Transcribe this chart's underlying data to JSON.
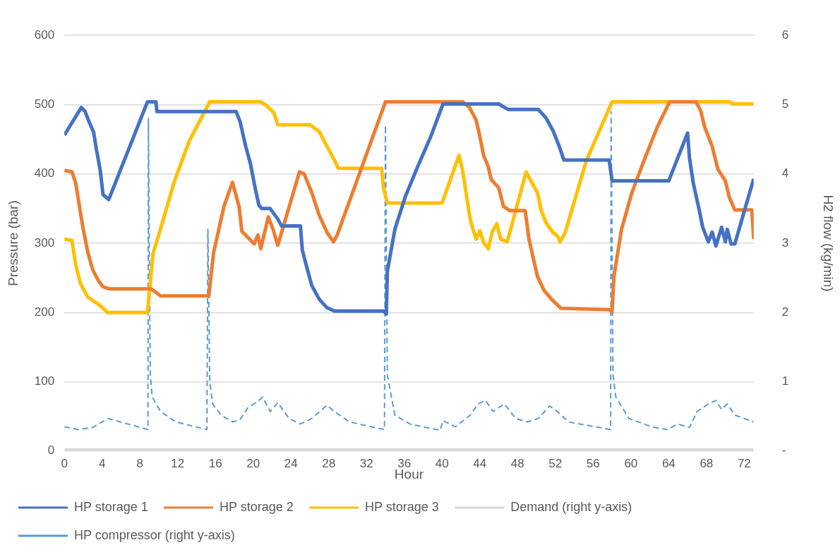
{
  "chart_data": {
    "type": "line",
    "xlabel": "Hour",
    "ylabel": "Pressure (bar)",
    "y2label": "H2 flow (kg/min)",
    "xlim": [
      0,
      73
    ],
    "xticks": [
      0,
      4,
      8,
      12,
      16,
      20,
      24,
      28,
      32,
      36,
      40,
      44,
      48,
      52,
      56,
      60,
      64,
      68,
      72
    ],
    "ylim": [
      0,
      600
    ],
    "yticks": [
      0,
      100,
      200,
      300,
      400,
      500,
      600
    ],
    "y2lim": [
      0,
      6
    ],
    "y2ticks": [
      {
        "value": 0,
        "label": "-"
      },
      1,
      2,
      3,
      4,
      5,
      6
    ],
    "grid": "y",
    "legend": "bottom",
    "marker": "none",
    "series": [
      {
        "name": "HP storage 1",
        "color": "#4472c4",
        "x": [
          0,
          1.8,
          2.2,
          2.6,
          3.1,
          3.4,
          3.8,
          4.1,
          4.7,
          8.8,
          9.7,
          9.8,
          18.2,
          18.6,
          19.2,
          19.7,
          20.2,
          20.6,
          20.9,
          21.8,
          22.6,
          23,
          25,
          25.2,
          25.7,
          26.2,
          27,
          27.8,
          28.6,
          33.8,
          34.1,
          34.2,
          35,
          36.1,
          37.4,
          38.8,
          40.1,
          46,
          47,
          50.2,
          51,
          51.8,
          52.4,
          52.9,
          57.7,
          58,
          64,
          66,
          66.2,
          66.6,
          67.2,
          67.6,
          68.2,
          68.6,
          69,
          69.6,
          70,
          70.2,
          70.6,
          71,
          73
        ],
        "values": [
          456,
          496,
          490,
          476,
          460,
          435,
          405,
          370,
          363,
          504,
          504,
          490,
          490,
          476,
          440,
          415,
          380,
          355,
          350,
          350,
          335,
          325,
          325,
          290,
          264,
          239,
          219,
          207,
          202,
          202,
          198,
          259,
          320,
          367,
          410,
          454,
          501,
          501,
          493,
          493,
          481,
          461,
          440,
          420,
          420,
          390,
          390,
          459,
          423,
          387,
          350,
          323,
          302,
          316,
          296,
          323,
          302,
          320,
          299,
          299,
          393
        ]
      },
      {
        "name": "HP storage 2",
        "color": "#ed7d31",
        "x": [
          0,
          0.8,
          1.2,
          1.6,
          2,
          2.5,
          3,
          3.6,
          4.1,
          4.8,
          9.2,
          10.2,
          15.3,
          15.8,
          16.9,
          17.8,
          18.5,
          18.8,
          19.6,
          20.1,
          20.5,
          20.8,
          21.6,
          22.1,
          22.6,
          24.9,
          25.4,
          26.2,
          27,
          27.8,
          28.5,
          28.9,
          34,
          42.2,
          42.9,
          43.6,
          44,
          44.4,
          44.9,
          45.2,
          46,
          46.5,
          47.2,
          48.8,
          49.2,
          49.7,
          50.1,
          50.8,
          51.6,
          52.6,
          57.7,
          58,
          58.2,
          59,
          60.1,
          61.4,
          62.8,
          64.1,
          66.9,
          67.4,
          67.8,
          68.6,
          69.2,
          70,
          70.4,
          71,
          72.8,
          73
        ],
        "values": [
          405,
          403,
          387,
          353,
          320,
          286,
          262,
          246,
          237,
          234,
          234,
          224,
          224,
          286,
          353,
          388,
          353,
          317,
          306,
          299,
          312,
          292,
          338,
          320,
          297,
          403,
          400,
          373,
          340,
          316,
          302,
          312,
          504,
          504,
          496,
          478,
          454,
          427,
          410,
          392,
          380,
          353,
          347,
          347,
          306,
          276,
          252,
          232,
          219,
          206,
          204,
          201,
          252,
          320,
          373,
          420,
          468,
          504,
          504,
          491,
          468,
          440,
          407,
          390,
          367,
          348,
          348,
          306
        ]
      },
      {
        "name": "HP storage 3",
        "color": "#ffc000",
        "x": [
          0,
          0.8,
          1.2,
          1.7,
          2.5,
          3.6,
          4.6,
          8.8,
          9.4,
          10,
          11.6,
          13.2,
          15.4,
          20.8,
          21.4,
          22.2,
          22.6,
          26,
          27,
          27.8,
          28.6,
          29,
          33.6,
          33.8,
          34.2,
          40,
          41.8,
          42.2,
          42.6,
          43,
          43.6,
          44,
          44.4,
          44.9,
          45.3,
          45.8,
          46.2,
          46.9,
          48.9,
          49.4,
          50.1,
          50.5,
          51,
          51.7,
          52.2,
          52.5,
          53,
          55.3,
          58,
          70.5,
          70.8,
          73
        ],
        "values": [
          306,
          304,
          269,
          242,
          222,
          212,
          200,
          200,
          286,
          312,
          387,
          447,
          504,
          504,
          499,
          488,
          471,
          471,
          461,
          440,
          420,
          408,
          408,
          380,
          358,
          358,
          427,
          403,
          367,
          333,
          306,
          318,
          301,
          292,
          316,
          328,
          306,
          302,
          403,
          390,
          373,
          347,
          330,
          316,
          311,
          302,
          314,
          420,
          504,
          504,
          501,
          501
        ]
      },
      {
        "name": "Demand (right y-axis)",
        "color": "#d9d9d9",
        "axis": "y2",
        "x": [
          0,
          73
        ],
        "values": [
          0,
          0
        ]
      },
      {
        "name": "HP compressor (right y-axis)",
        "color": "#5b9bd5",
        "axis": "y2",
        "line_style": "dashed",
        "x": [
          0,
          1.4,
          3,
          4.6,
          8.85,
          8.9,
          9.1,
          9.3,
          10.2,
          11.8,
          15.1,
          15.2,
          15.4,
          15.7,
          16.6,
          17.8,
          18.6,
          19.4,
          20.6,
          21,
          21.8,
          22.6,
          23.8,
          25,
          26.2,
          27.8,
          28.6,
          30.2,
          33.9,
          34,
          34.2,
          35,
          36.6,
          39.8,
          40.1,
          41.4,
          43,
          43.8,
          44.6,
          45.4,
          46.6,
          47.8,
          49,
          50.2,
          51.4,
          52.2,
          53.4,
          57.85,
          57.9,
          58.1,
          58.4,
          59.8,
          62.2,
          63.8,
          65,
          66.2,
          67,
          68.2,
          69,
          69.6,
          70.2,
          71,
          73
        ],
        "values": [
          0.35,
          0.31,
          0.34,
          0.47,
          0.31,
          4.8,
          1.1,
          0.78,
          0.57,
          0.42,
          0.31,
          3.2,
          1,
          0.68,
          0.52,
          0.42,
          0.45,
          0.62,
          0.73,
          0.78,
          0.57,
          0.7,
          0.47,
          0.39,
          0.47,
          0.66,
          0.57,
          0.42,
          0.31,
          4.7,
          1.1,
          0.52,
          0.39,
          0.3,
          0.44,
          0.35,
          0.52,
          0.68,
          0.73,
          0.57,
          0.68,
          0.47,
          0.42,
          0.47,
          0.65,
          0.57,
          0.42,
          0.31,
          4.9,
          1.1,
          0.78,
          0.47,
          0.35,
          0.31,
          0.39,
          0.34,
          0.57,
          0.68,
          0.73,
          0.6,
          0.68,
          0.52,
          0.42
        ]
      }
    ]
  }
}
